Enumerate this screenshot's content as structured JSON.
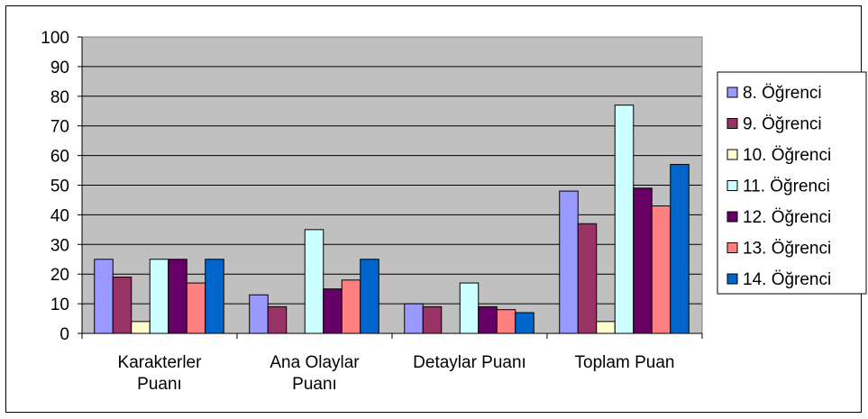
{
  "chart_data": {
    "type": "bar",
    "title": "",
    "xlabel": "",
    "ylabel": "",
    "ylim": [
      0,
      100
    ],
    "yticks": [
      0,
      10,
      20,
      30,
      40,
      50,
      60,
      70,
      80,
      90,
      100
    ],
    "grid": true,
    "legend_position": "right",
    "plot_background": "#c0c0c0",
    "categories": [
      [
        "Karakterler",
        "Puanı"
      ],
      [
        "Ana Olaylar",
        "Puanı"
      ],
      [
        "Detaylar Puanı"
      ],
      [
        "Toplam Puan"
      ]
    ],
    "series": [
      {
        "name": "8. Öğrenci",
        "color": "#9999ff",
        "values": [
          25,
          13,
          10,
          48
        ]
      },
      {
        "name": "9. Öğrenci",
        "color": "#993366",
        "values": [
          19,
          9,
          9,
          37
        ]
      },
      {
        "name": "10. Öğrenci",
        "color": "#ffffcc",
        "values": [
          4,
          0,
          0,
          4
        ]
      },
      {
        "name": "11. Öğrenci",
        "color": "#ccffff",
        "values": [
          25,
          35,
          17,
          77
        ]
      },
      {
        "name": "12. Öğrenci",
        "color": "#660066",
        "values": [
          25,
          15,
          9,
          49
        ]
      },
      {
        "name": "13. Öğrenci",
        "color": "#ff8080",
        "values": [
          17,
          18,
          8,
          43
        ]
      },
      {
        "name": "14. Öğrenci",
        "color": "#0066cc",
        "values": [
          25,
          25,
          7,
          57
        ]
      }
    ]
  }
}
